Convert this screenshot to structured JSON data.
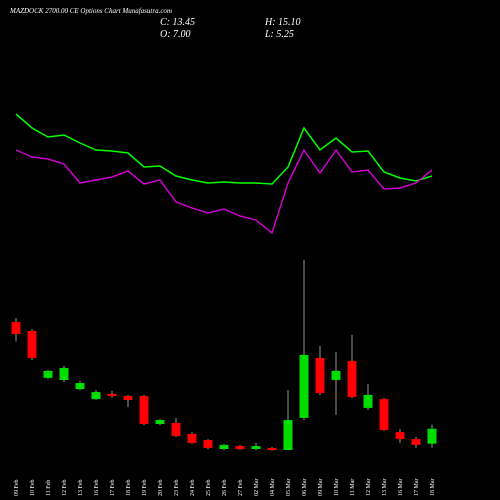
{
  "chart_data": {
    "type": "candlestick",
    "title": "MAZDOCK 2700.00 CE Options Chart Munafasutra.com",
    "summary": {
      "close": "C: 13.45",
      "high": "H: 15.10",
      "open": "O: 7.00",
      "low": "L: 5.25"
    },
    "categories": [
      "09 Feb",
      "10 Feb",
      "11 Feb",
      "12 Feb",
      "13 Feb",
      "16 Feb",
      "17 Feb",
      "18 Feb",
      "19 Feb",
      "20 Feb",
      "23 Feb",
      "24 Feb",
      "25 Feb",
      "26 Feb",
      "27 Feb",
      "02 Mar",
      "04 Mar",
      "05 Mar",
      "06 Mar",
      "09 Mar",
      "10 Mar",
      "11 Mar",
      "12 Mar",
      "13 Mar",
      "16 Mar",
      "17 Mar",
      "18 Mar"
    ],
    "open": [
      59.3,
      55.5,
      35.3,
      34.4,
      30.5,
      26.2,
      28.4,
      27.5,
      27.5,
      15.5,
      15.9,
      11.2,
      8.6,
      4.7,
      6.0,
      4.7,
      5.2,
      4.3,
      18.1,
      43.9,
      34.4,
      42.6,
      22.4,
      26.2,
      12.0,
      9.0,
      7.0
    ],
    "high": [
      61.0,
      56.3,
      38.7,
      40.4,
      34.0,
      30.1,
      29.7,
      28.0,
      28.0,
      17.6,
      18.1,
      12.0,
      9.0,
      6.9,
      6.5,
      7.3,
      5.6,
      30.1,
      86.0,
      49.0,
      46.4,
      53.8,
      32.7,
      26.7,
      13.3,
      9.9,
      15.1
    ],
    "low": [
      51.0,
      43.0,
      34.8,
      33.5,
      30.0,
      25.8,
      26.7,
      22.8,
      15.0,
      15.0,
      9.9,
      6.9,
      4.7,
      4.3,
      4.3,
      4.3,
      3.9,
      4.3,
      17.2,
      28.0,
      19.4,
      26.7,
      21.5,
      12.5,
      7.3,
      5.2,
      5.25
    ],
    "close": [
      54.2,
      43.9,
      38.3,
      39.6,
      33.1,
      29.2,
      27.5,
      25.8,
      15.5,
      17.2,
      10.3,
      7.3,
      5.2,
      6.5,
      4.7,
      6.0,
      4.3,
      17.2,
      45.2,
      28.8,
      38.3,
      27.1,
      28.0,
      12.9,
      9.0,
      6.5,
      13.45
    ],
    "up_color": "#00dd00",
    "down_color": "#ff0000",
    "lines": [
      {
        "color": "#00ff00",
        "values": [
          136,
          122,
          113,
          115,
          107,
          100,
          99,
          97,
          83,
          84,
          74,
          70,
          67,
          68,
          67,
          67,
          66,
          83,
          122,
          100,
          112,
          98,
          99,
          78,
          72,
          69,
          74
        ]
      },
      {
        "color": "#cc00cc",
        "values": [
          100,
          93,
          91,
          86,
          67,
          70,
          73,
          79,
          66,
          70,
          48,
          42,
          37,
          41,
          34,
          30,
          17,
          67,
          100,
          77,
          100,
          78,
          80,
          61,
          62,
          67,
          80
        ]
      }
    ]
  }
}
